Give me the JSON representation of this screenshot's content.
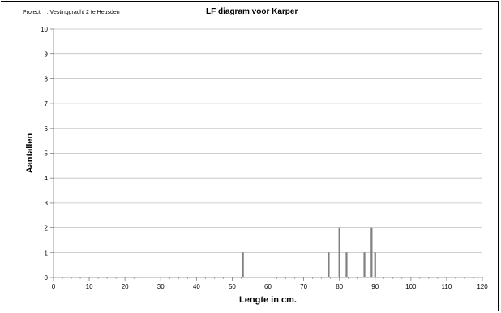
{
  "header": {
    "project_label": "Project",
    "project_value": ": Vestinggracht 2 te Heusden"
  },
  "chart_data": {
    "type": "bar",
    "title": "LF diagram voor Karper",
    "xlabel": "Lengte in cm.",
    "ylabel": "Aantallen",
    "xlim": [
      0,
      120
    ],
    "ylim": [
      0,
      10
    ],
    "x_ticks": [
      0,
      10,
      20,
      30,
      40,
      50,
      60,
      70,
      80,
      90,
      100,
      110,
      120
    ],
    "y_ticks": [
      0,
      1,
      2,
      3,
      4,
      5,
      6,
      7,
      8,
      9,
      10
    ],
    "grid": "horizontal",
    "legend": "none",
    "bar_color": "#808080",
    "x": [
      53,
      77,
      80,
      82,
      87,
      89,
      90
    ],
    "values": [
      1,
      1,
      2,
      1,
      1,
      2,
      1
    ]
  }
}
